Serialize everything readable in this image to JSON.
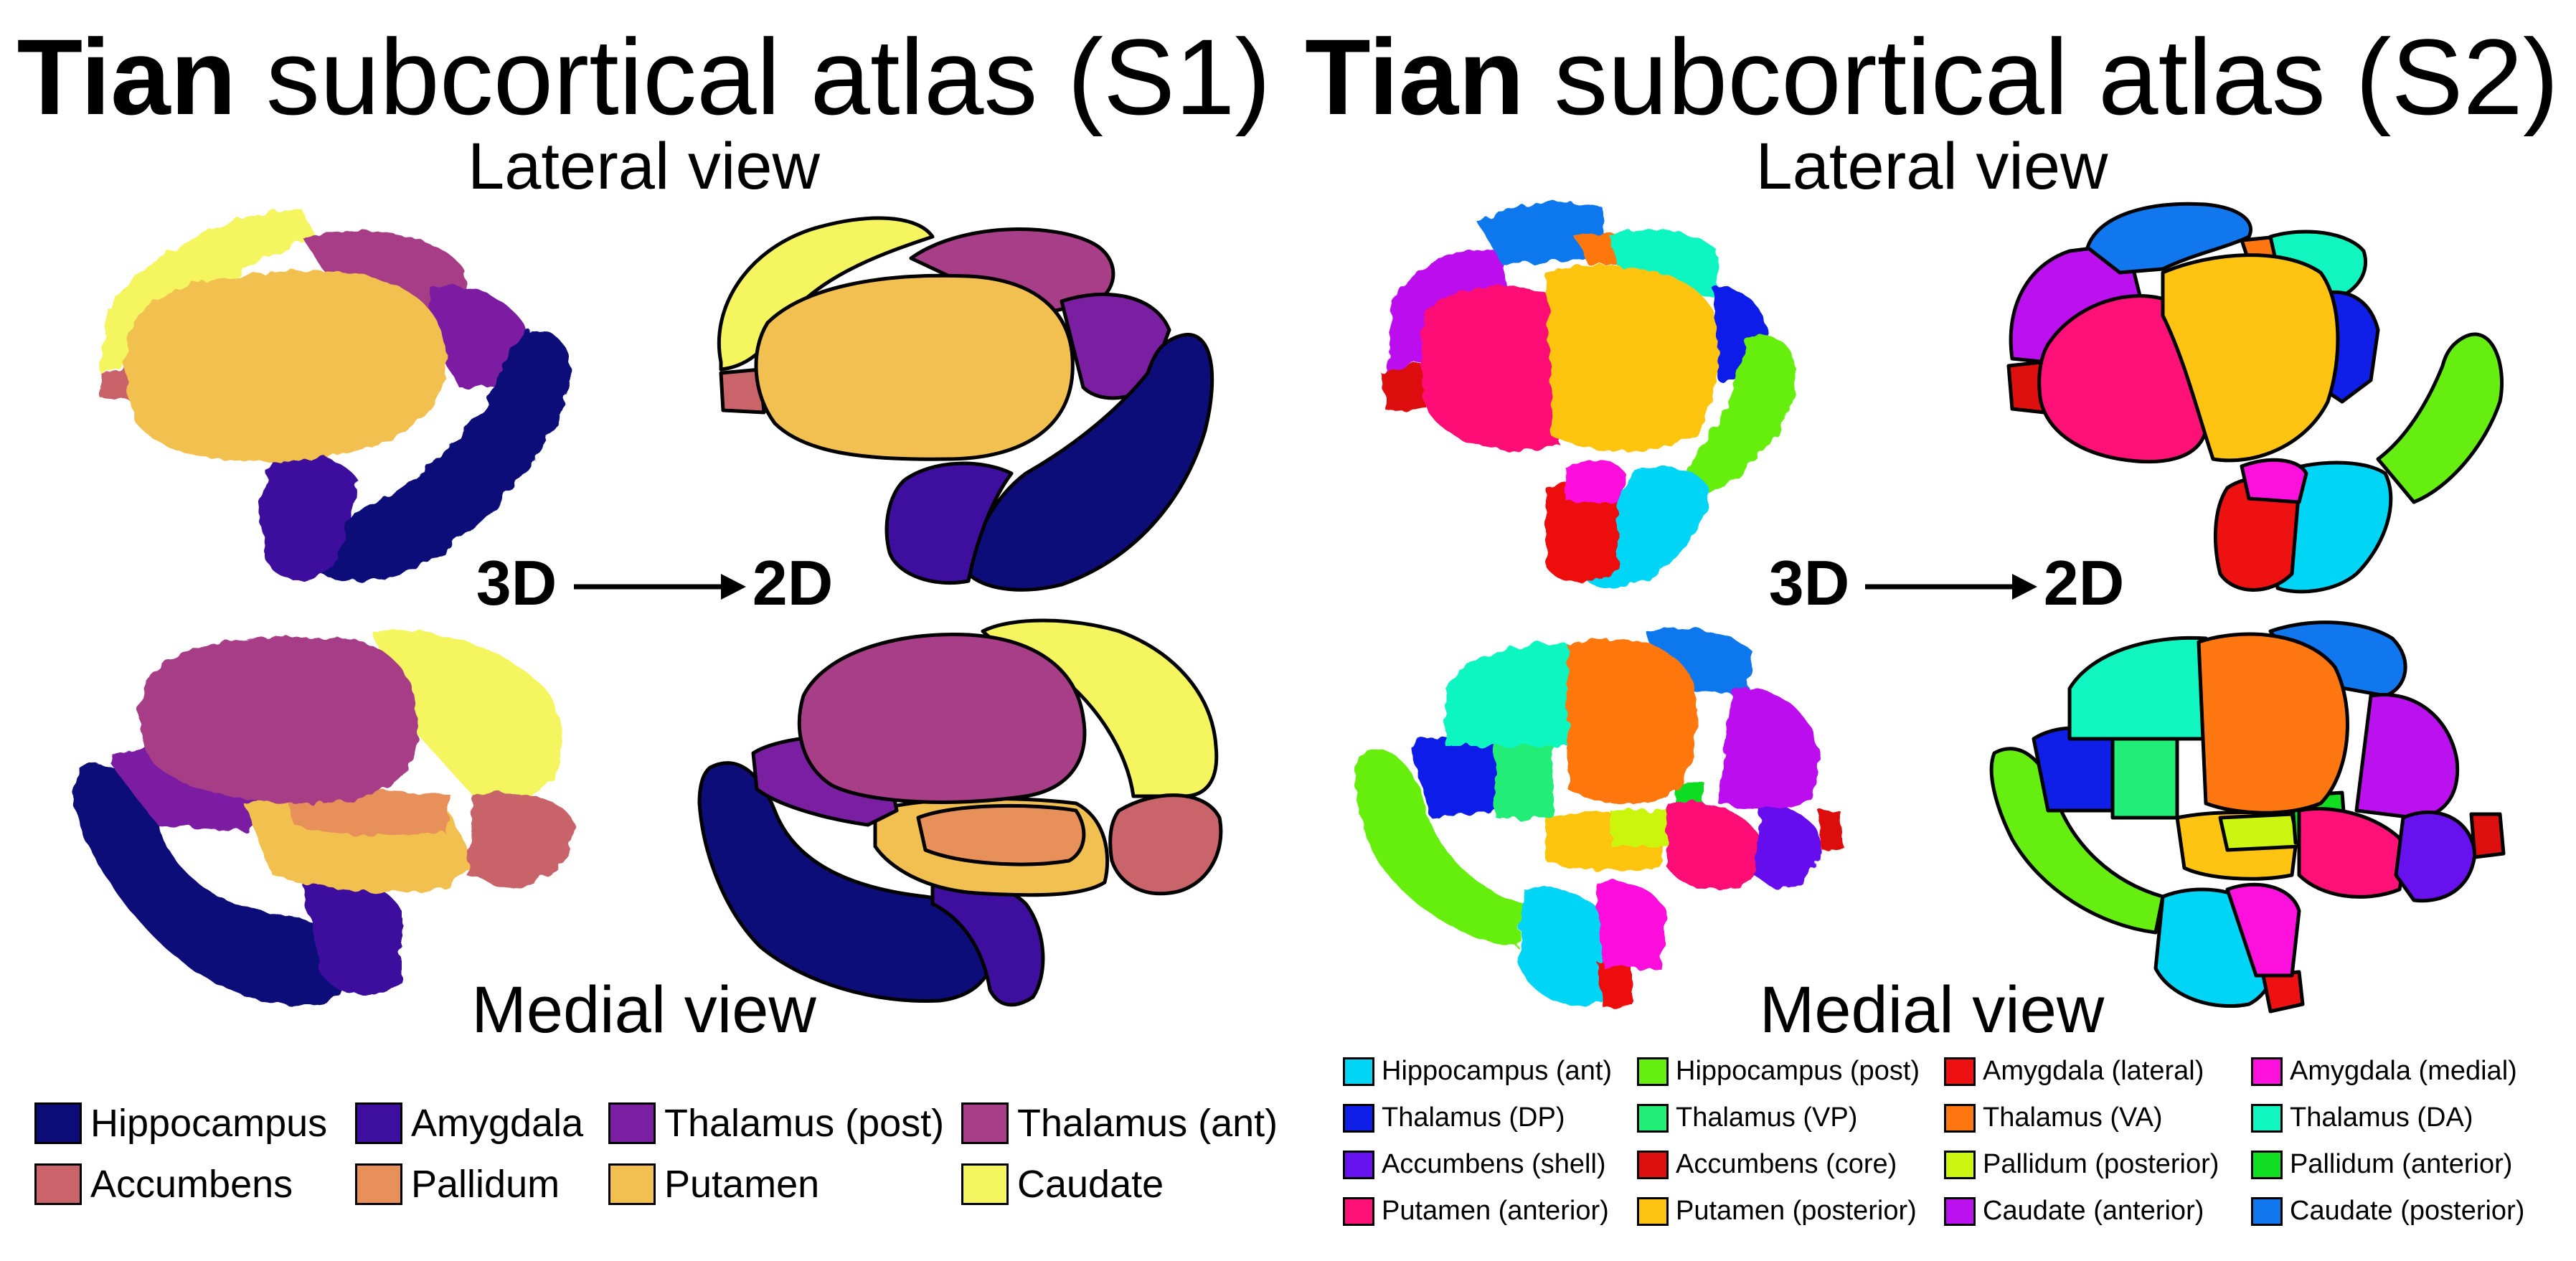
{
  "s1": {
    "title_bold": "Tian",
    "title_rest": "subcortical atlas (S1)",
    "lateral_label": "Lateral view",
    "medial_label": "Medial view",
    "label_3d": "3D",
    "label_2d": "2D",
    "legend": [
      {
        "label": "Hippocampus",
        "color": "#0d0d7a"
      },
      {
        "label": "Amygdala",
        "color": "#3e0f9e"
      },
      {
        "label": "Thalamus (post)",
        "color": "#7b1fa2"
      },
      {
        "label": "Thalamus (ant)",
        "color": "#a83e87"
      },
      {
        "label": "Accumbens",
        "color": "#c8646a"
      },
      {
        "label": "Pallidum",
        "color": "#e8905a"
      },
      {
        "label": "Putamen",
        "color": "#f2c050"
      },
      {
        "label": "Caudate",
        "color": "#f5f560"
      }
    ]
  },
  "s2": {
    "title_bold": "Tian",
    "title_rest": "subcortical atlas (S2)",
    "lateral_label": "Lateral view",
    "medial_label": "Medial view",
    "label_3d": "3D",
    "label_2d": "2D",
    "legend": [
      {
        "label": "Hippocampus (ant)",
        "color": "#00d5f5"
      },
      {
        "label": "Hippocampus (post)",
        "color": "#66ee11"
      },
      {
        "label": "Amygdala (lateral)",
        "color": "#ee1111"
      },
      {
        "label": "Amygdala (medial)",
        "color": "#ff11dd"
      },
      {
        "label": "Thalamus (DP)",
        "color": "#0f1fe8"
      },
      {
        "label": "Thalamus (VP)",
        "color": "#22ee77"
      },
      {
        "label": "Thalamus (VA)",
        "color": "#ff7711"
      },
      {
        "label": "Thalamus (DA)",
        "color": "#11f5c0"
      },
      {
        "label": "Accumbens (shell)",
        "color": "#6611ee"
      },
      {
        "label": "Accumbens (core)",
        "color": "#dd0f0f"
      },
      {
        "label": "Pallidum (posterior)",
        "color": "#ccf511"
      },
      {
        "label": "Pallidum (anterior)",
        "color": "#11dd22"
      },
      {
        "label": "Putamen (anterior)",
        "color": "#ff1177"
      },
      {
        "label": "Putamen (posterior)",
        "color": "#ffc411"
      },
      {
        "label": "Caudate (anterior)",
        "color": "#bb11ee"
      },
      {
        "label": "Caudate (posterior)",
        "color": "#1177ee"
      }
    ]
  }
}
